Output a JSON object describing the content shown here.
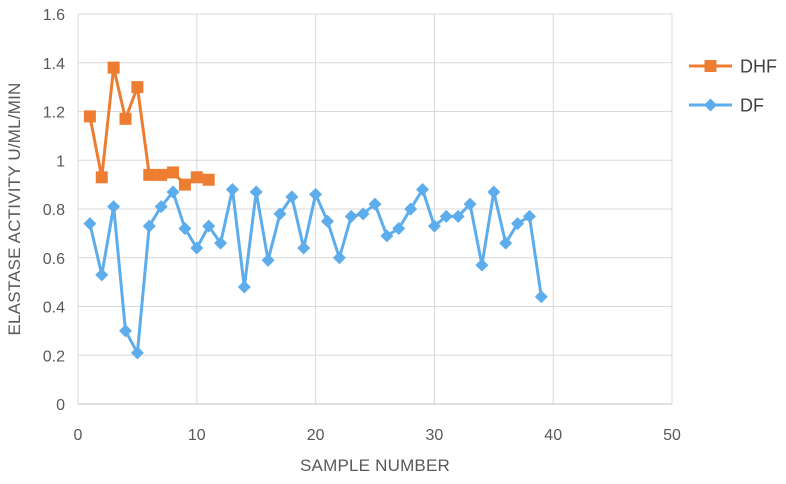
{
  "chart_data": {
    "type": "line",
    "title": "",
    "xlabel": "SAMPLE NUMBER",
    "ylabel": "ELASTASE ACTIVITY U/ML/MIN",
    "xlim": [
      0,
      50
    ],
    "ylim": [
      0,
      1.6
    ],
    "x_ticks": [
      "0",
      "10",
      "20",
      "30",
      "40",
      "50"
    ],
    "y_ticks": [
      "0",
      "0.2",
      "0.4",
      "0.6",
      "0.8",
      "1",
      "1.2",
      "1.4",
      "1.6"
    ],
    "grid": true,
    "legend_position": "right",
    "series": [
      {
        "name": "DHF",
        "color": "#ED7D31",
        "marker": "square",
        "x": [
          1,
          2,
          3,
          4,
          5,
          6,
          7,
          8,
          9,
          10,
          11
        ],
        "y": [
          1.18,
          0.93,
          1.38,
          1.17,
          1.3,
          0.94,
          0.94,
          0.95,
          0.9,
          0.93,
          0.92
        ]
      },
      {
        "name": "DF",
        "color": "#5DADEC",
        "marker": "diamond",
        "x": [
          1,
          2,
          3,
          4,
          5,
          6,
          7,
          8,
          9,
          10,
          11,
          12,
          13,
          14,
          15,
          16,
          17,
          18,
          19,
          20,
          21,
          22,
          23,
          24,
          25,
          26,
          27,
          28,
          29,
          30,
          31,
          32,
          33,
          34,
          35,
          36,
          37,
          38,
          39
        ],
        "y": [
          0.74,
          0.53,
          0.81,
          0.3,
          0.21,
          0.73,
          0.81,
          0.87,
          0.72,
          0.64,
          0.73,
          0.66,
          0.88,
          0.48,
          0.87,
          0.59,
          0.78,
          0.85,
          0.64,
          0.86,
          0.75,
          0.6,
          0.77,
          0.78,
          0.82,
          0.69,
          0.72,
          0.8,
          0.88,
          0.73,
          0.77,
          0.77,
          0.82,
          0.57,
          0.87,
          0.66,
          0.74,
          0.77,
          0.44
        ]
      }
    ]
  }
}
